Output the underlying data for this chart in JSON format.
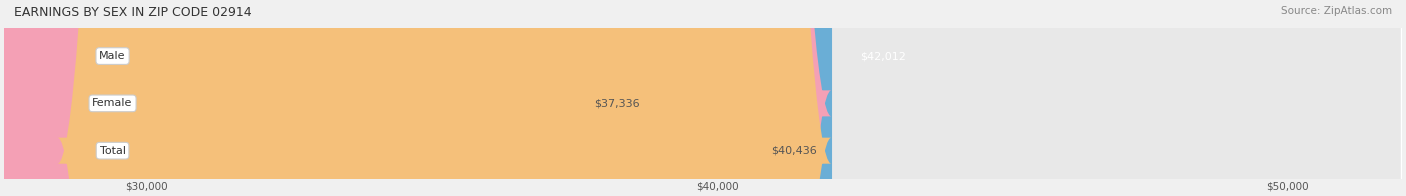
{
  "title": "EARNINGS BY SEX IN ZIP CODE 02914",
  "source": "Source: ZipAtlas.com",
  "categories": [
    "Male",
    "Female",
    "Total"
  ],
  "values": [
    42012,
    37336,
    40436
  ],
  "bar_colors": [
    "#6aaed6",
    "#f4a0b5",
    "#f5c07a"
  ],
  "label_colors": [
    "#ffffff",
    "#555555",
    "#555555"
  ],
  "xmin": 30000,
  "xmax": 52000,
  "xticks": [
    30000,
    40000,
    50000
  ],
  "xtick_labels": [
    "$30,000",
    "$40,000",
    "$50,000"
  ],
  "value_labels": [
    "$42,012",
    "$37,336",
    "$40,436"
  ],
  "background_color": "#f0f0f0",
  "bar_background_color": "#e8e8e8",
  "title_fontsize": 9,
  "source_fontsize": 7.5,
  "bar_label_fontsize": 8,
  "category_fontsize": 8,
  "tick_fontsize": 7.5
}
